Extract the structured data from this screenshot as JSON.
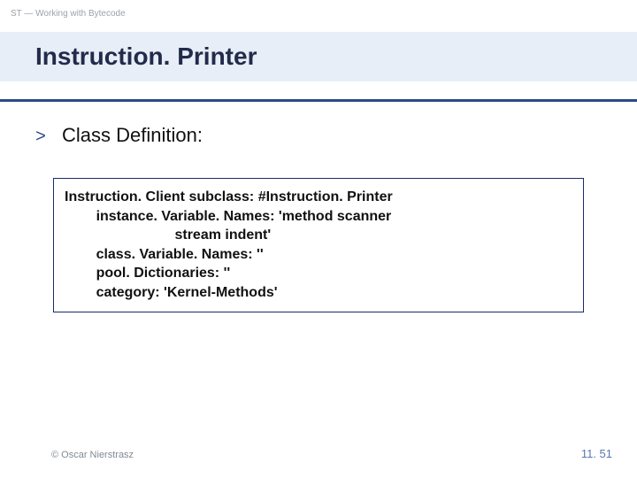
{
  "breadcrumb": "ST — Working with Bytecode",
  "title": "Instruction. Printer",
  "section_label": "Class Definition:",
  "code": {
    "l1": "Instruction. Client subclass: #Instruction. Printer",
    "l2": "        instance. Variable. Names: 'method scanner",
    "l3": "                            stream indent'",
    "l4": "        class. Variable. Names: ''",
    "l5": "        pool. Dictionaries: ''",
    "l6": "        category: 'Kernel-Methods'"
  },
  "footer": {
    "copyright": "© Oscar Nierstrasz",
    "page": "11. 51"
  },
  "colors": {
    "band_bg": "#e7eef7",
    "rule": "#2b4a86",
    "title_fg": "#222b4a",
    "muted": "#9aa2ab",
    "footer_muted": "#808a94",
    "page_fg": "#5a77b5",
    "box_border": "#1a2b6b"
  }
}
